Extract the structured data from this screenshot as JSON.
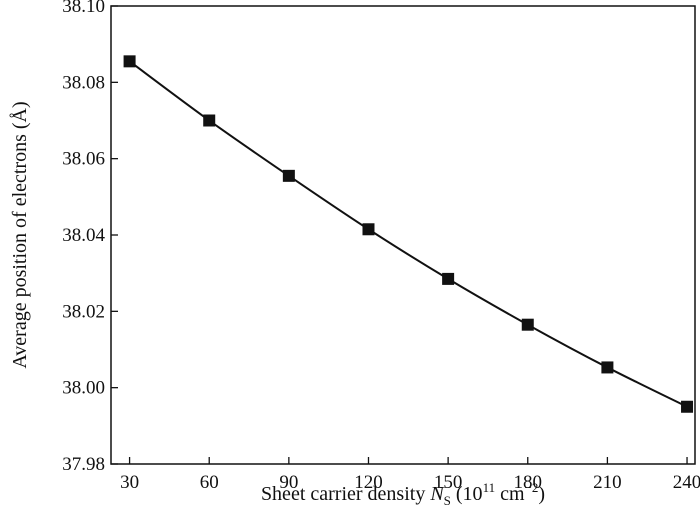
{
  "chart_data": {
    "type": "line",
    "title": "",
    "xlabel": {
      "prefix": "Sheet carrier density ",
      "symbol": "N",
      "subscript": "S",
      "unit_open": " (10",
      "unit_exp": "11",
      "unit_mid": " cm",
      "unit_exp2": "−2",
      "unit_close": ")"
    },
    "ylabel": "Average position of electrons (Å)",
    "xlim": [
      23,
      243
    ],
    "ylim": [
      37.98,
      38.1
    ],
    "xticks": [
      "30",
      "60",
      "90",
      "120",
      "150",
      "180",
      "210",
      "240"
    ],
    "yticks": [
      "37.98",
      "38.00",
      "38.02",
      "38.04",
      "38.06",
      "38.08",
      "38.10"
    ],
    "grid": false,
    "legend": "none",
    "series": [
      {
        "x": [
          30,
          60,
          90,
          120,
          150,
          180,
          210,
          240
        ],
        "y": [
          38.0855,
          38.07,
          38.0555,
          38.0415,
          38.0285,
          38.0165,
          38.0053,
          37.995
        ],
        "color": "#111111",
        "marker": "square"
      }
    ]
  }
}
